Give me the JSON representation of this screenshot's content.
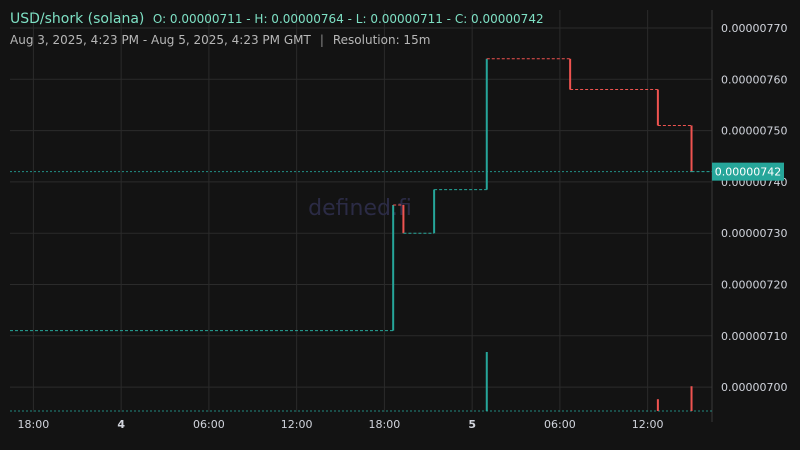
{
  "header": {
    "symbol": "USD/shork (solana)",
    "ohlc": "O: 0.00000711 - H: 0.00000764 - L: 0.00000711 - C: 0.00000742",
    "range": "Aug 3, 2025, 4:23 PM - Aug 5, 2025, 4:23 PM GMT",
    "separator": "|",
    "resolution": "Resolution: 15m"
  },
  "watermark": "defined.fi",
  "colors": {
    "up": "#26a69a",
    "down": "#ef5350",
    "background": "#131313",
    "grid": "#2b2b2b"
  },
  "chart_data": {
    "type": "candlestick",
    "y_ticks": [
      "0.00000770",
      "0.00000760",
      "0.00000750",
      "0.00000740",
      "0.00000730",
      "0.00000720",
      "0.00000710",
      "0.00000700"
    ],
    "y_tick_values": [
      7.7e-06,
      7.6e-06,
      7.5e-06,
      7.4e-06,
      7.3e-06,
      7.2e-06,
      7.1e-06,
      7e-06
    ],
    "ylim": [
      6.95e-06,
      7.78e-06
    ],
    "x_ticks": [
      {
        "label": "18:00",
        "t": 1.6,
        "bold": false
      },
      {
        "label": "4",
        "t": 7.6,
        "bold": true
      },
      {
        "label": "06:00",
        "t": 13.6,
        "bold": false
      },
      {
        "label": "12:00",
        "t": 19.6,
        "bold": false
      },
      {
        "label": "18:00",
        "t": 25.6,
        "bold": false
      },
      {
        "label": "5",
        "t": 31.6,
        "bold": true
      },
      {
        "label": "06:00",
        "t": 37.6,
        "bold": false
      },
      {
        "label": "12:00",
        "t": 43.6,
        "bold": false
      }
    ],
    "x_range_hours": [
      0,
      48
    ],
    "last_price_label": "0.00000742",
    "last_price": 7.42e-06,
    "candles": [
      {
        "t": 26.2,
        "o": 7.11e-06,
        "c": 7.355e-06
      },
      {
        "t": 26.9,
        "o": 7.355e-06,
        "c": 7.3e-06
      },
      {
        "t": 29.0,
        "o": 7.3e-06,
        "c": 7.385e-06
      },
      {
        "t": 32.6,
        "o": 7.385e-06,
        "c": 7.64e-06
      },
      {
        "t": 38.3,
        "o": 7.64e-06,
        "c": 7.58e-06
      },
      {
        "t": 44.3,
        "o": 7.58e-06,
        "c": 7.51e-06
      },
      {
        "t": 46.6,
        "o": 7.51e-06,
        "c": 7.42e-06
      }
    ],
    "volume_bars": [
      {
        "t": 32.6,
        "v": 1.0,
        "dir": "up"
      },
      {
        "t": 44.3,
        "v": 0.2,
        "dir": "down"
      },
      {
        "t": 46.6,
        "v": 0.42,
        "dir": "down"
      }
    ],
    "baseline_price": 7.11e-06
  }
}
